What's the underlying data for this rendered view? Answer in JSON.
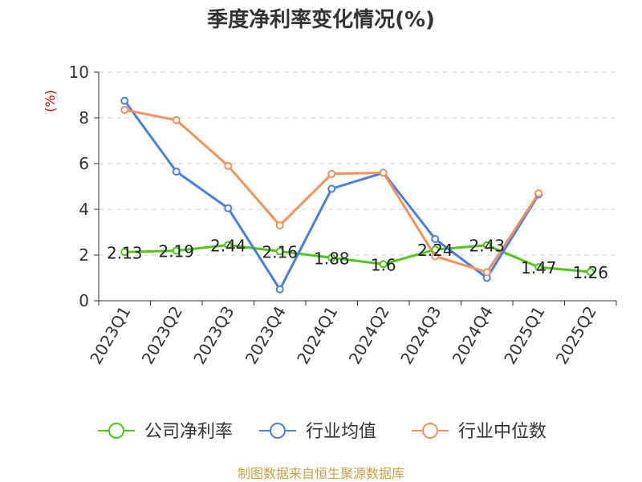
{
  "chart_data": {
    "type": "line",
    "title": "季度净利率变化情况(%)",
    "ylabel": "(%)",
    "ylim": [
      0,
      10
    ],
    "yticks": [
      0,
      2,
      4,
      6,
      8,
      10
    ],
    "grid": true,
    "legend_position": "bottom",
    "categories": [
      "2023Q1",
      "2023Q2",
      "2023Q3",
      "2023Q4",
      "2024Q1",
      "2024Q2",
      "2024Q3",
      "2024Q4",
      "2025Q1",
      "2025Q2"
    ],
    "series": [
      {
        "name": "公司净利率",
        "color": "#52c41a",
        "values": [
          2.13,
          2.19,
          2.44,
          2.16,
          1.88,
          1.6,
          2.24,
          2.43,
          1.47,
          1.26
        ],
        "labels": [
          "2.13",
          "2.19",
          "2.44",
          "2.16",
          "1.88",
          "1.6",
          "2.24",
          "2.43",
          "1.47",
          "1.26"
        ]
      },
      {
        "name": "行业均值",
        "color": "#4a7fe0",
        "values": [
          8.75,
          5.65,
          4.05,
          0.5,
          4.9,
          5.6,
          2.7,
          1.0,
          4.65,
          null
        ]
      },
      {
        "name": "行业中位数",
        "color": "#f4905a",
        "values": [
          8.35,
          7.9,
          5.9,
          3.3,
          5.55,
          5.6,
          1.95,
          1.25,
          4.7,
          null
        ]
      }
    ]
  },
  "source": "制图数据来自恒生聚源数据库"
}
